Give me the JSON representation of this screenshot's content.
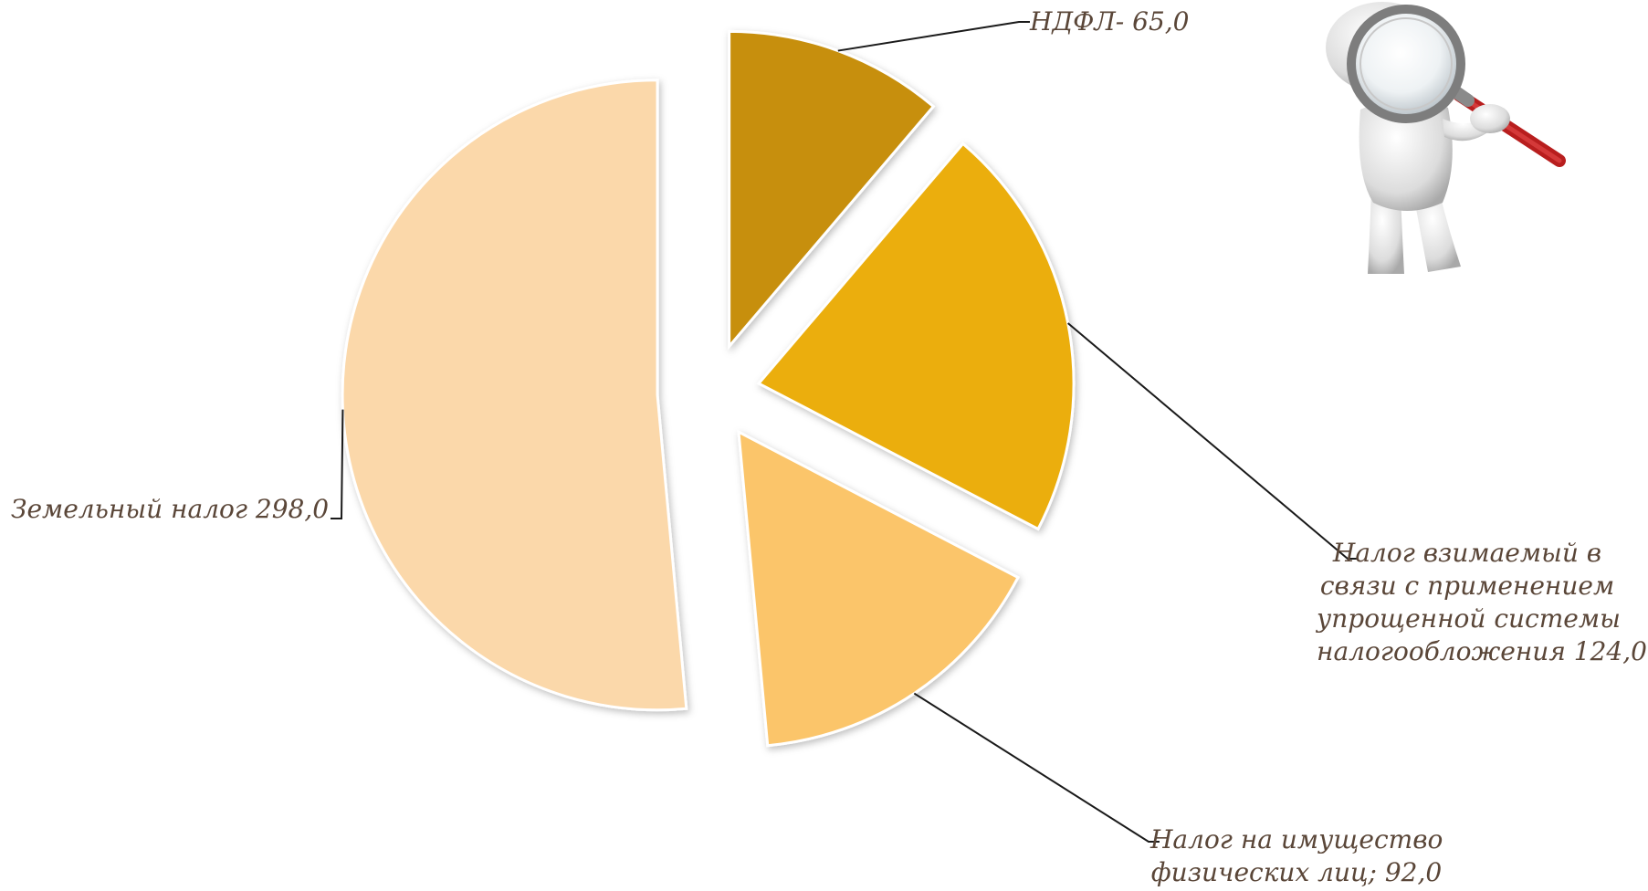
{
  "chart_data": {
    "type": "pie",
    "title": "",
    "slices": [
      {
        "label": "НДФЛ-  65,0",
        "value": 65.0,
        "color": "#c78f0c"
      },
      {
        "label": "Налог взимаемый в связи с применением упрощенной системы налогообложения 124,0",
        "value": 124.0,
        "color": "#ebae0e"
      },
      {
        "label": "Налог на имущество физических лиц; 92,0",
        "value": 92.0,
        "color": "#fbc56a"
      },
      {
        "label": "Земельный налог 298,0",
        "value": 298.0,
        "color": "#fbd8aa"
      }
    ],
    "legend": "none",
    "exploded": true,
    "labels": {
      "ndfl": [
        "НДФЛ-  65,0"
      ],
      "usn": [
        "Налог взимаемый в",
        "связи с применением",
        "упрощенной системы",
        "налогообложения 124,0"
      ],
      "property": [
        "Налог на имущество",
        "физических лиц; 92,0"
      ],
      "land": [
        "Земельный налог 298,0"
      ]
    }
  },
  "decor": {
    "figure": "figure-with-magnifying-glass-icon"
  }
}
